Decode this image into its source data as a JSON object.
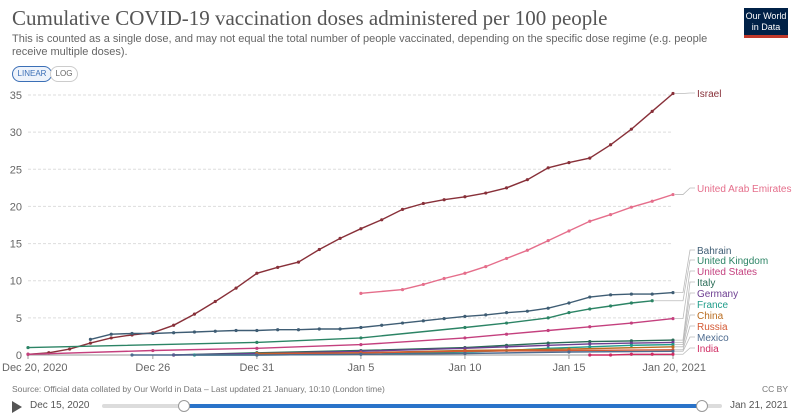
{
  "header": {
    "title": "Cumulative COVID-19 vaccination doses administered per 100 people",
    "subtitle": "This is counted as a single dose, and may not equal the total number of people vaccinated, depending on the specific dose regime (e.g. people receive multiple doses).",
    "logo_line1": "Our World",
    "logo_line2": "in Data"
  },
  "controls": {
    "linear_label": "LINEAR",
    "log_label": "LOG"
  },
  "footer": {
    "source": "Source: Official data collated by Our World in Data – Last updated 21 January, 10:10 (London time)",
    "license": "CC BY"
  },
  "timeline": {
    "start_label": "Dec 15, 2020",
    "end_label": "Jan 21, 2021"
  },
  "chart_data": {
    "type": "line",
    "x_ticks": [
      "Dec 20, 2020",
      "Dec 26",
      "Dec 31",
      "Jan 5",
      "Jan 10",
      "Jan 15",
      "Jan 20, 2021"
    ],
    "x_tick_days": [
      0,
      6,
      11,
      16,
      21,
      26,
      31
    ],
    "y_ticks": [
      0,
      5,
      10,
      15,
      20,
      25,
      30,
      35
    ],
    "ylim": [
      0,
      35
    ],
    "xlim": [
      0,
      31
    ],
    "grid": "horizontal",
    "series": [
      {
        "name": "Israel",
        "color": "#883039",
        "x": [
          0,
          1,
          2,
          3,
          4,
          5,
          6,
          7,
          8,
          9,
          10,
          11,
          12,
          13,
          14,
          15,
          16,
          17,
          18,
          19,
          20,
          21,
          22,
          23,
          24,
          25,
          26,
          27,
          28,
          29,
          30,
          31
        ],
        "values": [
          0.1,
          0.3,
          0.8,
          1.6,
          2.3,
          2.7,
          3.0,
          4.0,
          5.5,
          7.2,
          9.0,
          11.0,
          11.8,
          12.5,
          14.2,
          15.7,
          17.0,
          18.2,
          19.6,
          20.4,
          20.9,
          21.3,
          21.8,
          22.5,
          23.6,
          25.2,
          25.9,
          26.5,
          28.3,
          30.4,
          32.8,
          35.2
        ]
      },
      {
        "name": "United Arab Emirates",
        "color": "#e56e8b",
        "x": [
          16,
          18,
          19,
          20,
          21,
          22,
          23,
          24,
          25,
          26,
          27,
          28,
          29,
          30,
          31
        ],
        "values": [
          8.3,
          8.8,
          9.5,
          10.3,
          11.0,
          11.9,
          13.0,
          14.1,
          15.4,
          16.7,
          18.0,
          18.9,
          19.9,
          20.7,
          21.6
        ]
      },
      {
        "name": "Bahrain",
        "color": "#3f5d74",
        "x": [
          3,
          4,
          5,
          6,
          7,
          8,
          9,
          10,
          11,
          12,
          13,
          14,
          15,
          16,
          17,
          18,
          19,
          20,
          21,
          22,
          23,
          24,
          25,
          26,
          27,
          28,
          29,
          30,
          31
        ],
        "values": [
          2.1,
          2.8,
          2.9,
          2.9,
          3.0,
          3.1,
          3.2,
          3.3,
          3.3,
          3.4,
          3.4,
          3.5,
          3.5,
          3.7,
          4.0,
          4.3,
          4.6,
          4.9,
          5.2,
          5.4,
          5.7,
          5.9,
          6.3,
          7.0,
          7.8,
          8.1,
          8.2,
          8.2,
          8.4
        ]
      },
      {
        "name": "United Kingdom",
        "color": "#2c8465",
        "x": [
          0,
          11,
          16,
          21,
          23,
          25,
          26,
          27,
          28,
          29,
          30
        ],
        "values": [
          1.0,
          1.7,
          2.3,
          3.7,
          4.3,
          5.0,
          5.7,
          6.2,
          6.6,
          7.0,
          7.3
        ]
      },
      {
        "name": "United States",
        "color": "#c4407e",
        "x": [
          0,
          6,
          11,
          16,
          21,
          23,
          25,
          27,
          29,
          31
        ],
        "values": [
          0.1,
          0.6,
          0.9,
          1.4,
          2.3,
          2.8,
          3.3,
          3.8,
          4.3,
          4.9
        ]
      },
      {
        "name": "Italy",
        "color": "#286b56",
        "x": [
          7,
          11,
          16,
          21,
          23,
          25,
          27,
          29,
          31
        ],
        "values": [
          0.0,
          0.3,
          0.6,
          1.0,
          1.3,
          1.6,
          1.8,
          1.9,
          2.0
        ]
      },
      {
        "name": "Germany",
        "color": "#6d3e91",
        "x": [
          7,
          11,
          16,
          21,
          23,
          25,
          27,
          29,
          31
        ],
        "values": [
          0.0,
          0.2,
          0.5,
          0.9,
          1.1,
          1.3,
          1.5,
          1.6,
          1.7
        ]
      },
      {
        "name": "France",
        "color": "#1f9d8a",
        "x": [
          8,
          11,
          16,
          21,
          23,
          25,
          27,
          29,
          31
        ],
        "values": [
          0.0,
          0.0,
          0.1,
          0.4,
          0.6,
          0.9,
          1.1,
          1.3,
          1.4
        ]
      },
      {
        "name": "China",
        "color": "#b96d21",
        "x": [
          11,
          16,
          21,
          26,
          31
        ],
        "values": [
          0.2,
          0.3,
          0.6,
          0.8,
          1.1
        ]
      },
      {
        "name": "Russia",
        "color": "#d45933",
        "x": [
          11,
          16,
          21,
          26,
          31
        ],
        "values": [
          0.1,
          0.3,
          0.5,
          0.6,
          0.7
        ]
      },
      {
        "name": "Mexico",
        "color": "#4e6b8f",
        "x": [
          5,
          11,
          16,
          21,
          26,
          31
        ],
        "values": [
          0.0,
          0.0,
          0.1,
          0.2,
          0.4,
          0.5
        ]
      },
      {
        "name": "India",
        "color": "#d02b62",
        "x": [
          27,
          28,
          29,
          30,
          31
        ],
        "values": [
          0.0,
          0.0,
          0.1,
          0.1,
          0.1
        ]
      }
    ]
  }
}
